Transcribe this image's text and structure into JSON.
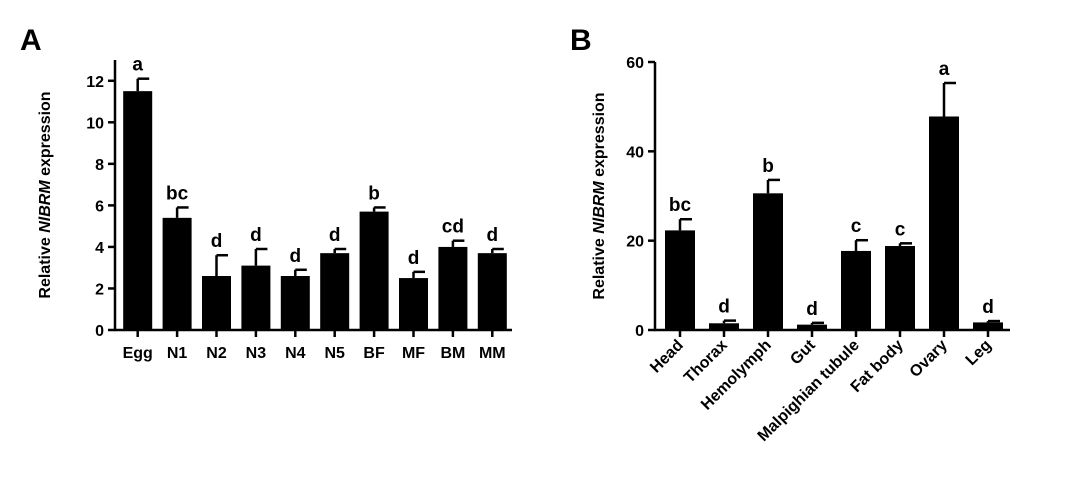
{
  "panels": [
    {
      "label": "A"
    },
    {
      "label": "B"
    }
  ],
  "chart_data": [
    {
      "type": "bar",
      "panel": "A",
      "ylabel_prefix": "Relative ",
      "ylabel_gene": "NlBRM",
      "ylabel_suffix": " expression",
      "xlabel": "",
      "ylim": [
        0,
        13
      ],
      "yticks": [
        0,
        2,
        4,
        6,
        8,
        10,
        12
      ],
      "categories": [
        "Egg",
        "N1",
        "N2",
        "N3",
        "N4",
        "N5",
        "BF",
        "MF",
        "BM",
        "MM"
      ],
      "values": [
        11.5,
        5.4,
        2.6,
        3.1,
        2.6,
        3.7,
        5.7,
        2.5,
        4.0,
        3.7
      ],
      "errors": [
        0.6,
        0.5,
        1.0,
        0.8,
        0.3,
        0.2,
        0.2,
        0.3,
        0.3,
        0.2
      ],
      "significance": [
        "a",
        "bc",
        "d",
        "d",
        "d",
        "d",
        "b",
        "d",
        "cd",
        "d"
      ],
      "bar_color": "#000000",
      "grid": false
    },
    {
      "type": "bar",
      "panel": "B",
      "ylabel_prefix": "Relative ",
      "ylabel_gene": "NlBRM",
      "ylabel_suffix": " expression",
      "xlabel": "",
      "ylim": [
        0,
        60
      ],
      "yticks": [
        0,
        20,
        40,
        60
      ],
      "categories": [
        "Head",
        "Thorax",
        "Hemolymph",
        "Gut",
        "Malpighian tubule",
        "Fat body",
        "Ovary",
        "Leg"
      ],
      "values": [
        22.3,
        1.5,
        30.6,
        1.2,
        17.7,
        18.8,
        47.8,
        1.7
      ],
      "errors": [
        2.5,
        0.6,
        3.0,
        0.4,
        2.4,
        0.6,
        7.5,
        0.3
      ],
      "significance": [
        "bc",
        "d",
        "b",
        "d",
        "c",
        "c",
        "a",
        "d"
      ],
      "bar_color": "#000000",
      "grid": false
    }
  ]
}
